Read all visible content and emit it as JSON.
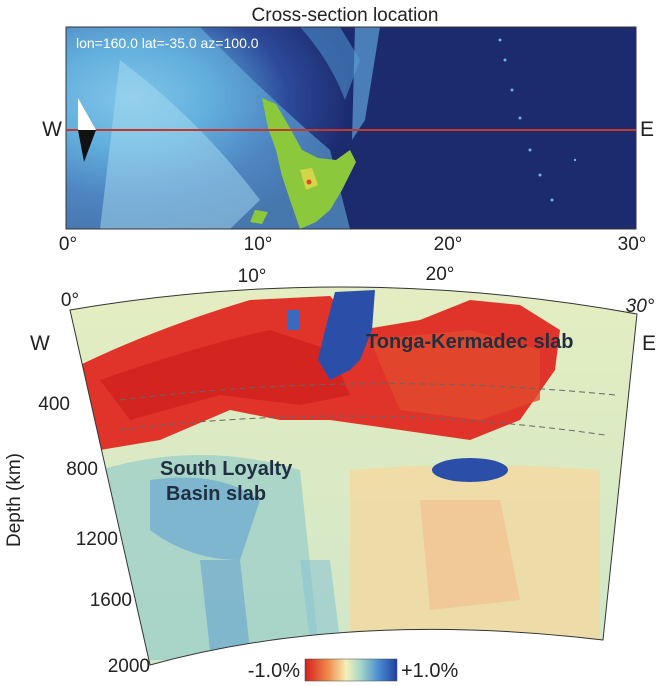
{
  "map": {
    "title": "Cross-section location",
    "info": "lon=160.0  lat=-35.0  az=100.0",
    "west_label": "W",
    "east_label": "E",
    "x_ticks": [
      "0°",
      "10°",
      "20°",
      "30°"
    ]
  },
  "section": {
    "top_ticks": [
      "0°",
      "10°",
      "20°",
      "30°"
    ],
    "depth_label": "Depth (km)",
    "depth_ticks": [
      "400",
      "800",
      "1200",
      "1600",
      "2000"
    ],
    "west_label": "W",
    "east_label": "E",
    "slab_tonga": "Tonga-Kermadec slab",
    "slab_loyalty_line1": "South Loyalty",
    "slab_loyalty_line2": "Basin slab"
  },
  "colorbar": {
    "min_label": "-1.0%",
    "max_label": "+1.0%"
  },
  "colors": {
    "ocean_deep": "#1c2a6e",
    "ocean_shallow": "#8fd0ec",
    "land": "#8cc83c",
    "section_line": "#c0392b",
    "fast": "#2b4fa8",
    "slow": "#d9231f",
    "neutral": "#eef0b0"
  }
}
